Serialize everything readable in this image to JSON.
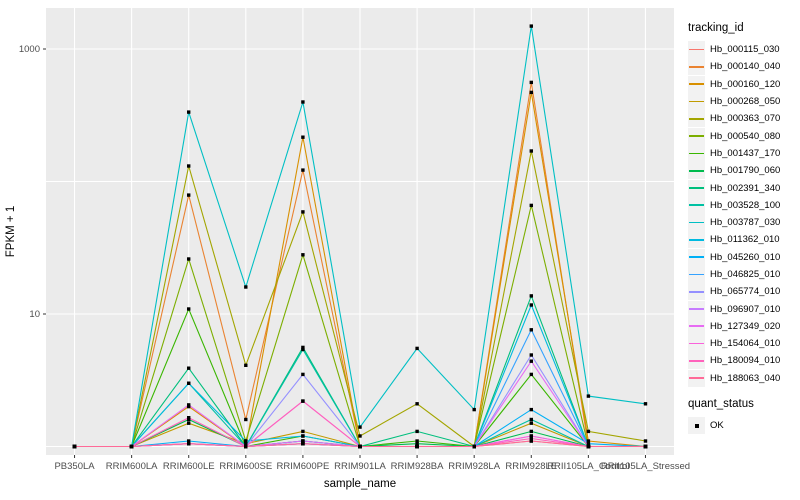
{
  "chart_data": {
    "type": "line",
    "title": "",
    "xlabel": "sample_name",
    "ylabel": "FPKM + 1",
    "y_scale": "log10",
    "ylim_log": [
      -0.06,
      3.31
    ],
    "grid": true,
    "panel_bg": "#EBEBEB",
    "grid_color": "#FFFFFF",
    "axis_text_color": "#4D4D4D",
    "tick_color": "#333333",
    "point_color": "#000000",
    "y_gridlines": [
      1,
      10,
      100,
      1000
    ],
    "y_ticks": [
      {
        "value": 10,
        "label": "10"
      },
      {
        "value": 1000,
        "label": "1000"
      }
    ],
    "categories": [
      "PB350LA",
      "RRIM600LA",
      "RRIM600LE",
      "RRIM600SE",
      "RRIM600PE",
      "RRIM901LA",
      "RRIM928BA",
      "RRIM928LA",
      "RRIM928LE",
      "RRII105LA_Control",
      "RRII105LA_Stressed"
    ],
    "legend_title": "tracking_id",
    "legend_position": "right",
    "series": [
      {
        "name": "Hb_000115_030",
        "color": "#F8766D",
        "values": [
          1,
          1,
          1.05,
          1,
          1.05,
          1,
          1,
          1,
          1.1,
          1,
          1
        ]
      },
      {
        "name": "Hb_000140_040",
        "color": "#EA8331",
        "values": [
          1,
          1,
          79,
          1.6,
          122,
          1,
          1,
          1,
          560,
          1,
          1
        ]
      },
      {
        "name": "Hb_000160_120",
        "color": "#D89000",
        "values": [
          1,
          1,
          2.0,
          1,
          216,
          1,
          1,
          1,
          470,
          1.1,
          1
        ]
      },
      {
        "name": "Hb_000268_050",
        "color": "#C09B00",
        "values": [
          1,
          1,
          1.5,
          1.05,
          1.3,
          1,
          1,
          1,
          1.5,
          1,
          1
        ]
      },
      {
        "name": "Hb_000363_070",
        "color": "#A3A500",
        "values": [
          1,
          1,
          131,
          4.1,
          59,
          1.2,
          2.1,
          1,
          170,
          1.3,
          1.1
        ]
      },
      {
        "name": "Hb_000540_080",
        "color": "#7CAE00",
        "values": [
          1,
          1,
          26,
          1.1,
          28,
          1,
          1,
          1,
          66,
          1,
          1
        ]
      },
      {
        "name": "Hb_001437_170",
        "color": "#39B600",
        "values": [
          1,
          1,
          10.9,
          1,
          1.2,
          1,
          1.1,
          1,
          3.5,
          1,
          1
        ]
      },
      {
        "name": "Hb_001790_060",
        "color": "#00BB4E",
        "values": [
          1,
          1,
          1.6,
          1,
          1.1,
          1,
          1.05,
          1,
          1.3,
          1,
          1
        ]
      },
      {
        "name": "Hb_002391_340",
        "color": "#00BF7D",
        "values": [
          1,
          1,
          3.9,
          1,
          5.6,
          1,
          1.3,
          1,
          13.7,
          1,
          1
        ]
      },
      {
        "name": "Hb_003528_100",
        "color": "#00C1A3",
        "values": [
          1,
          1,
          3.0,
          1,
          5.4,
          1,
          1,
          1,
          1.6,
          1,
          1
        ]
      },
      {
        "name": "Hb_003787_030",
        "color": "#00BFC4",
        "values": [
          1,
          1,
          334,
          16,
          398,
          1.4,
          5.5,
          1.9,
          1490,
          2.4,
          2.1
        ]
      },
      {
        "name": "Hb_011362_010",
        "color": "#00BAE0",
        "values": [
          1,
          1,
          3.0,
          1.1,
          1.2,
          1,
          1,
          1,
          11.7,
          1,
          1
        ]
      },
      {
        "name": "Hb_045260_010",
        "color": "#00B0F6",
        "values": [
          1,
          1,
          1.1,
          1,
          1.1,
          1,
          1,
          1,
          1.9,
          1.05,
          1
        ]
      },
      {
        "name": "Hb_046825_010",
        "color": "#35A2FF",
        "values": [
          1,
          1,
          1.05,
          1,
          1.05,
          1,
          1,
          1,
          7.6,
          1,
          1
        ]
      },
      {
        "name": "Hb_065774_010",
        "color": "#9590FF",
        "values": [
          1,
          1,
          1.05,
          1,
          3.5,
          1,
          1,
          1,
          4.9,
          1,
          1
        ]
      },
      {
        "name": "Hb_096907_010",
        "color": "#C77CFF",
        "values": [
          1,
          1,
          1.05,
          1,
          1.05,
          1,
          1,
          1,
          1.2,
          1,
          1
        ]
      },
      {
        "name": "Hb_127349_020",
        "color": "#E76BF3",
        "values": [
          1,
          1,
          2.06,
          1,
          1.1,
          1,
          1,
          1,
          4.4,
          1,
          1
        ]
      },
      {
        "name": "Hb_154064_010",
        "color": "#FA62DB",
        "values": [
          1,
          1,
          1.05,
          1,
          2.2,
          1,
          1,
          1,
          1.2,
          1,
          1
        ]
      },
      {
        "name": "Hb_180094_010",
        "color": "#FF62BC",
        "values": [
          1,
          1,
          1.65,
          1,
          2.2,
          1,
          1,
          1,
          1.15,
          1,
          1
        ]
      },
      {
        "name": "Hb_188063_040",
        "color": "#FF6A98",
        "values": [
          1,
          1,
          1.05,
          1,
          1.05,
          1,
          1,
          1,
          1.1,
          1,
          1
        ]
      }
    ],
    "legend2": {
      "title": "quant_status",
      "items": [
        {
          "label": "OK",
          "marker": "black-point"
        }
      ]
    }
  }
}
